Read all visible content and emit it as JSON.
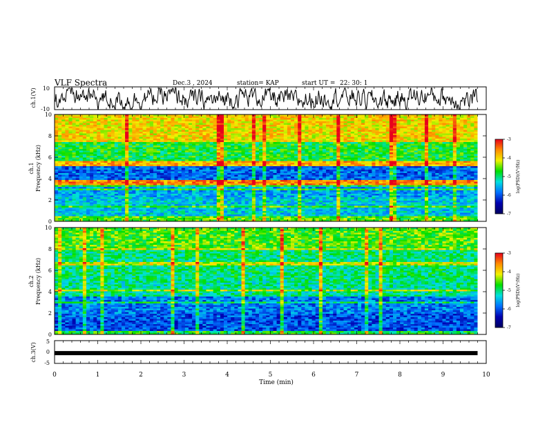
{
  "header": {
    "title": "VLF Spectra",
    "date": "Dec.3 , 2024",
    "station": "station= KAP",
    "start": "start UT =",
    "start_time": "22: 30: 1"
  },
  "colorbar": {
    "label": "log(PSD)(V²/Hz)",
    "ticks": [
      "-3",
      "-4",
      "-5",
      "-6",
      "-7"
    ],
    "stops": [
      "#e8001c",
      "#ff8c00",
      "#f2f200",
      "#00e000",
      "#00e0e0",
      "#0070ff",
      "#0000b0",
      "#000060"
    ]
  },
  "chart_data": [
    {
      "type": "line",
      "name": "ch1-waveform",
      "ylabel": "ch.1(V)",
      "ylim": [
        -10,
        10
      ],
      "yticks": [
        "10",
        "-10"
      ],
      "xlim": [
        0,
        9.8
      ],
      "note": "noisy waveform oscillating mostly between about -10 and +9 V"
    },
    {
      "type": "heatmap",
      "name": "ch1-spectrogram",
      "ylabel": "ch.1",
      "ylabel2": "Frequency (kHz)",
      "ylim": [
        0,
        10
      ],
      "yticks": [
        "0",
        "2",
        "4",
        "6",
        "8",
        "10"
      ],
      "xlim": [
        0,
        9.8
      ],
      "zrange": [
        -7,
        -3
      ],
      "intensity_by_band_kHz": [
        {
          "from": 0.0,
          "to": 0.5,
          "z": -4.6
        },
        {
          "from": 0.5,
          "to": 2.2,
          "z": -5.4
        },
        {
          "from": 2.2,
          "to": 3.4,
          "z": -5.6
        },
        {
          "from": 3.4,
          "to": 3.8,
          "z": -3.6
        },
        {
          "from": 3.8,
          "to": 5.2,
          "z": -5.9
        },
        {
          "from": 5.2,
          "to": 5.6,
          "z": -3.8
        },
        {
          "from": 5.6,
          "to": 7.6,
          "z": -4.8
        },
        {
          "from": 7.6,
          "to": 10.0,
          "z": -4.0
        }
      ]
    },
    {
      "type": "heatmap",
      "name": "ch2-spectrogram",
      "ylabel": "ch.2",
      "ylabel2": "Frequency (kHz)",
      "ylim": [
        0,
        10
      ],
      "yticks": [
        "0",
        "2",
        "4",
        "6",
        "8",
        "10"
      ],
      "xlim": [
        0,
        9.8
      ],
      "zrange": [
        -7,
        -3
      ],
      "intensity_by_band_kHz": [
        {
          "from": 0.0,
          "to": 0.4,
          "z": -4.8
        },
        {
          "from": 0.4,
          "to": 2.0,
          "z": -6.0
        },
        {
          "from": 2.0,
          "to": 3.5,
          "z": -5.8
        },
        {
          "from": 3.5,
          "to": 5.0,
          "z": -5.1
        },
        {
          "from": 5.0,
          "to": 8.0,
          "z": -5.0
        },
        {
          "from": 8.0,
          "to": 10.0,
          "z": -4.6
        }
      ]
    },
    {
      "type": "line",
      "name": "ch3-trace",
      "ylabel": "ch.3(V)",
      "ylim": [
        -5,
        5
      ],
      "yticks": [
        "5",
        "0",
        "-5"
      ],
      "xlim": [
        0,
        9.8
      ],
      "value": -0.5
    }
  ],
  "xaxis": {
    "label": "Time (min)",
    "ticks": [
      "0",
      "1",
      "2",
      "3",
      "4",
      "5",
      "6",
      "7",
      "8",
      "9",
      "10"
    ]
  }
}
